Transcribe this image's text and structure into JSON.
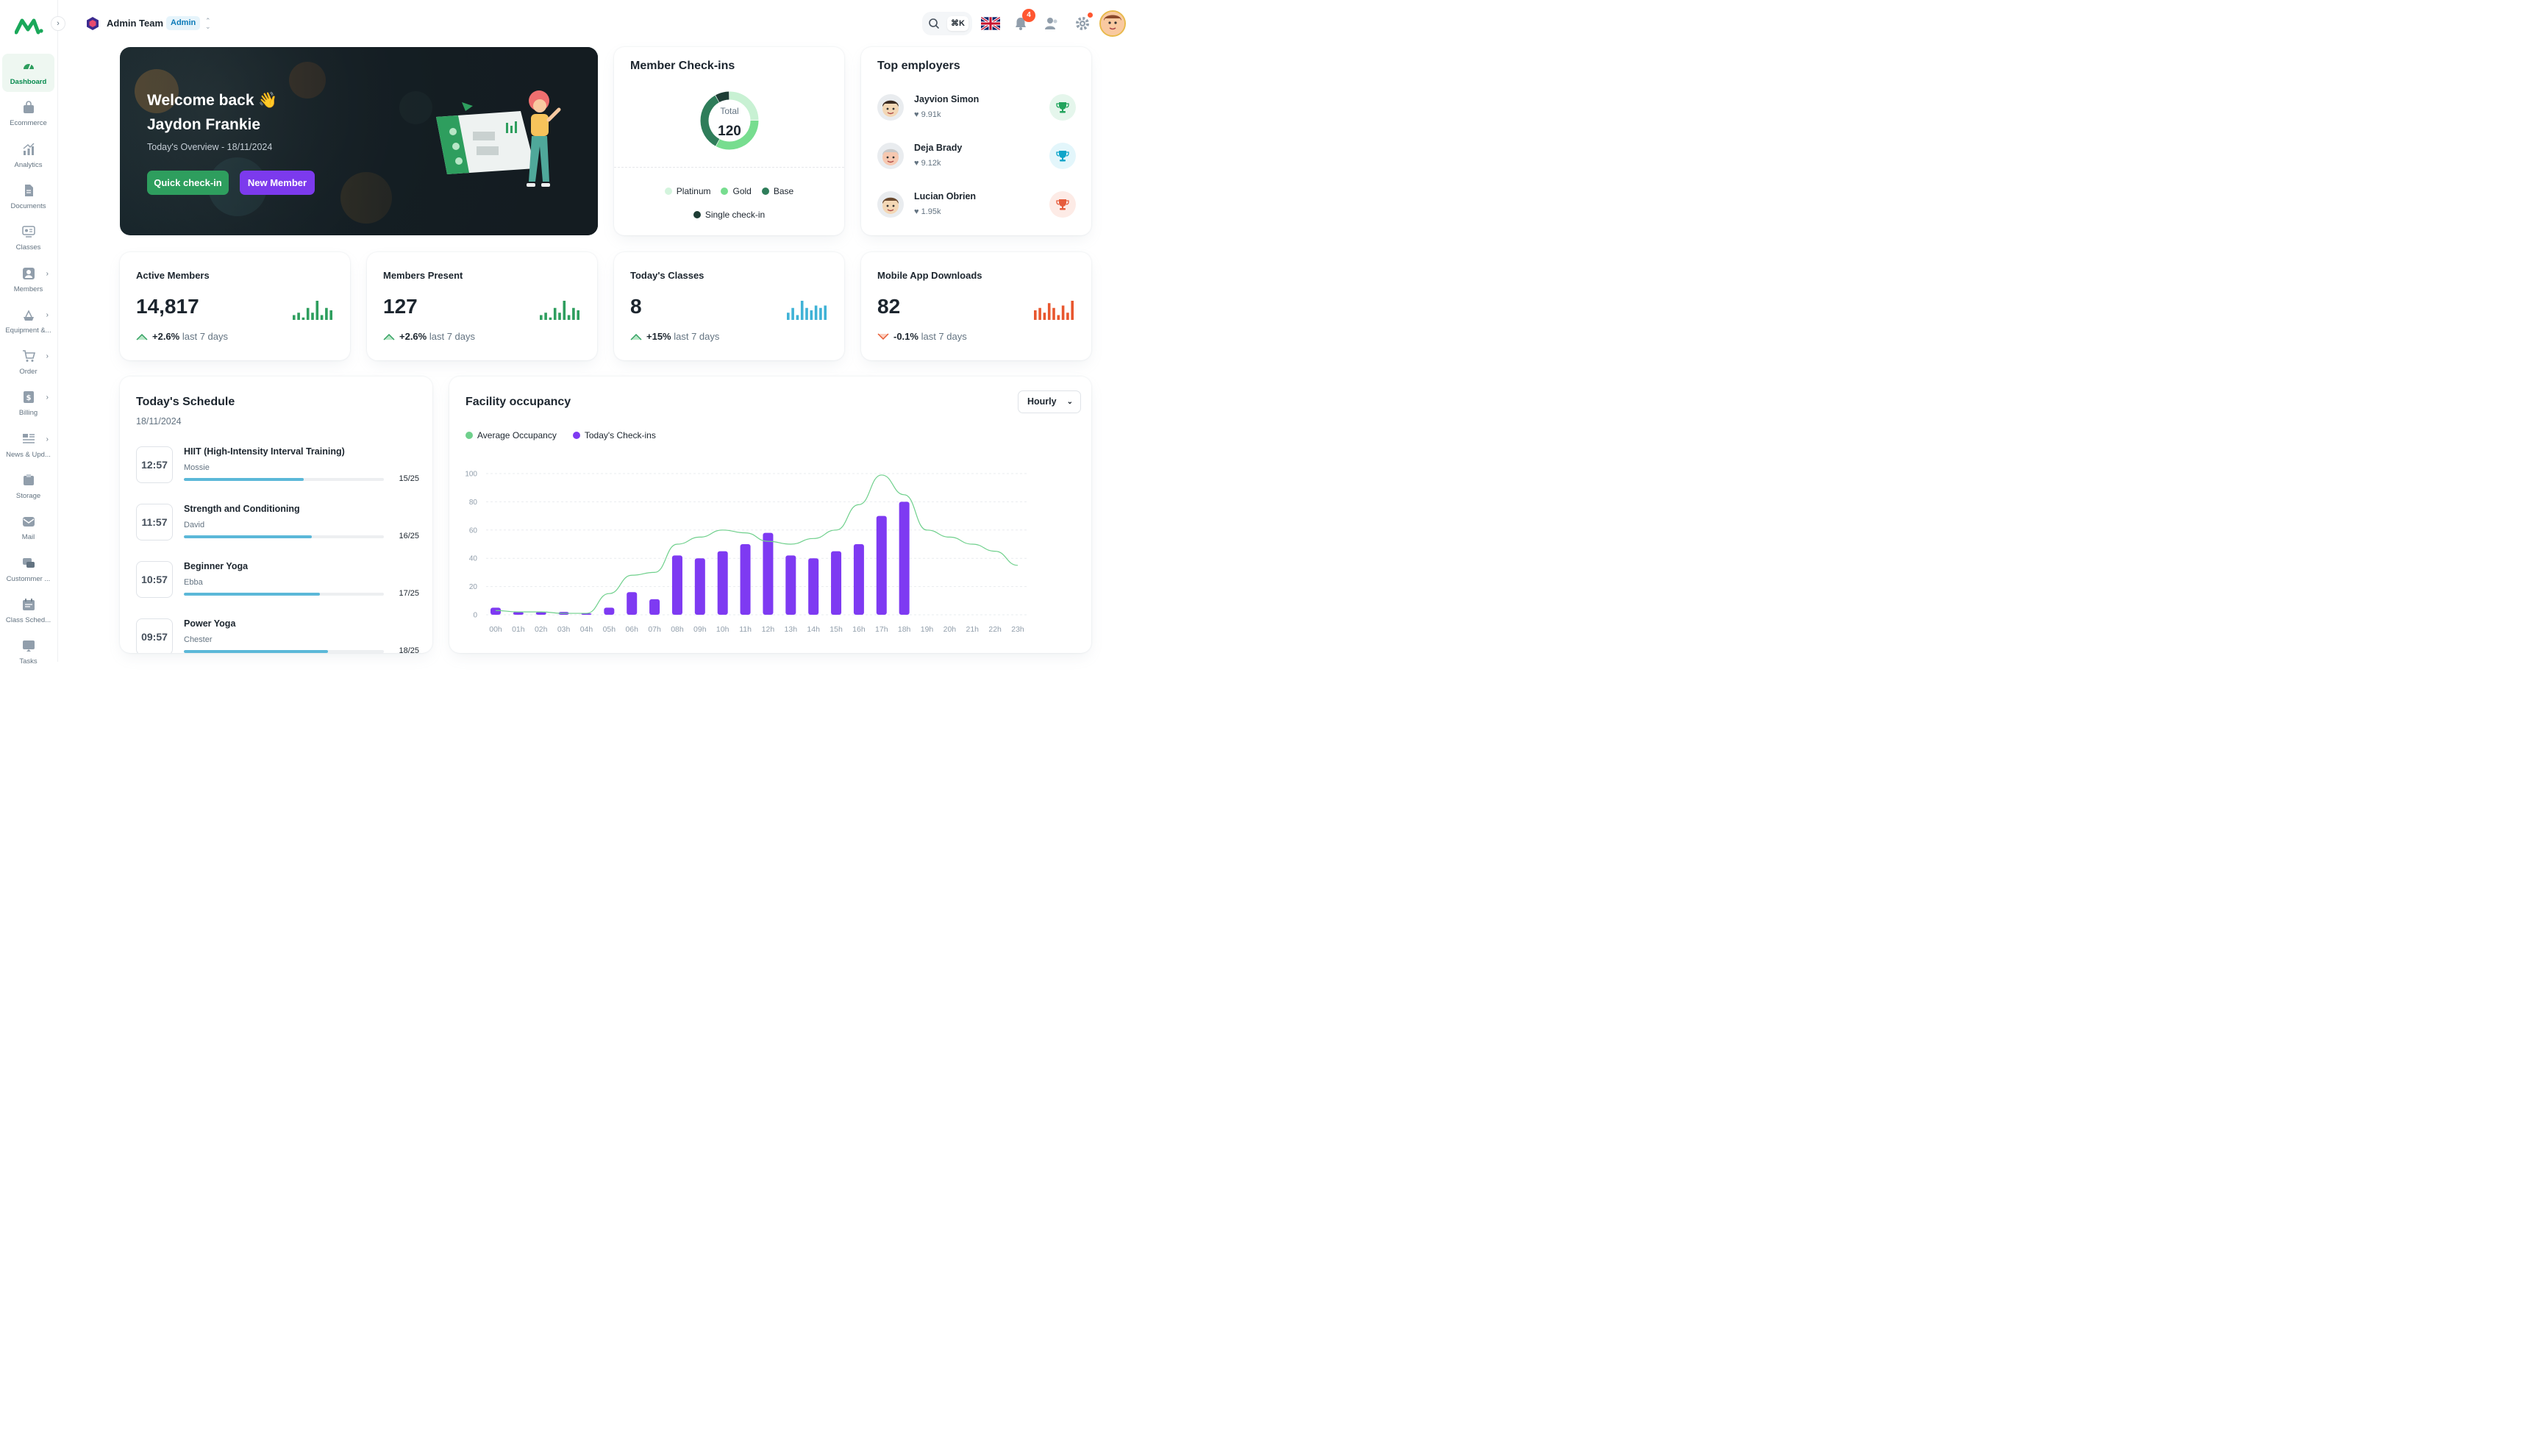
{
  "sidebar": {
    "items": [
      {
        "label": "Dashboard",
        "icon": "dashboard-icon",
        "active": true,
        "has_children": false
      },
      {
        "label": "Ecommerce",
        "icon": "bag-icon",
        "active": false,
        "has_children": false
      },
      {
        "label": "Analytics",
        "icon": "analytics-icon",
        "active": false,
        "has_children": false
      },
      {
        "label": "Documents",
        "icon": "document-icon",
        "active": false,
        "has_children": false
      },
      {
        "label": "Classes",
        "icon": "classes-icon",
        "active": false,
        "has_children": false
      },
      {
        "label": "Members",
        "icon": "user-icon",
        "active": false,
        "has_children": true
      },
      {
        "label": "Equipment &...",
        "icon": "equipment-icon",
        "active": false,
        "has_children": true
      },
      {
        "label": "Order",
        "icon": "cart-icon",
        "active": false,
        "has_children": true
      },
      {
        "label": "Billing",
        "icon": "billing-icon",
        "active": false,
        "has_children": true
      },
      {
        "label": "News & Upd...",
        "icon": "news-icon",
        "active": false,
        "has_children": true
      },
      {
        "label": "Storage",
        "icon": "storage-icon",
        "active": false,
        "has_children": false
      },
      {
        "label": "Mail",
        "icon": "mail-icon",
        "active": false,
        "has_children": false
      },
      {
        "label": "Custommer ...",
        "icon": "chat-icon",
        "active": false,
        "has_children": false
      },
      {
        "label": "Class Sched...",
        "icon": "calendar-icon",
        "active": false,
        "has_children": false
      },
      {
        "label": "Tasks",
        "icon": "tasks-icon",
        "active": false,
        "has_children": false
      }
    ]
  },
  "header": {
    "team_name": "Admin Team",
    "team_badge": "Admin",
    "search_shortcut": "⌘K",
    "notification_count": "4"
  },
  "hero": {
    "title_line1": "Welcome back 👋",
    "title_line2": "Jaydon Frankie",
    "subtitle": "Today's Overview - 18/11/2024",
    "primary_button": "Quick check-in",
    "secondary_button": "New Member"
  },
  "checkins": {
    "title": "Member Check-ins",
    "total_label": "Total",
    "total_value": "120",
    "legend": [
      {
        "label": "Platinum",
        "color": "#d3f4dd"
      },
      {
        "label": "Gold",
        "color": "#77dd8f"
      },
      {
        "label": "Base",
        "color": "#2f7d5a"
      },
      {
        "label": "Single check-in",
        "color": "#1e3d35"
      }
    ],
    "segments": [
      {
        "name": "Platinum",
        "fraction": 0.25,
        "color": "#c8f1d3"
      },
      {
        "name": "Gold",
        "fraction": 0.33,
        "color": "#77dd8f"
      },
      {
        "name": "Base",
        "fraction": 0.34,
        "color": "#2f7d5a"
      },
      {
        "name": "Single check-in",
        "fraction": 0.08,
        "color": "#1e3d35"
      }
    ]
  },
  "employers": {
    "title": "Top employers",
    "list": [
      {
        "name": "Jayvion Simon",
        "likes": "9.91k",
        "trophy_color": "#22a45d",
        "trophy_bg": "#e5f6ec"
      },
      {
        "name": "Deja Brady",
        "likes": "9.12k",
        "trophy_color": "#0ea5c9",
        "trophy_bg": "#e3f6fb"
      },
      {
        "name": "Lucian Obrien",
        "likes": "1.95k",
        "trophy_color": "#e65c3c",
        "trophy_bg": "#fdebe6"
      }
    ]
  },
  "stats": [
    {
      "title": "Active Members",
      "value": "14,817",
      "trend": "+2.6%",
      "trend_suffix": "last 7 days",
      "direction": "up",
      "color": "#2e9e5e",
      "spark": [
        2,
        3,
        1,
        5,
        3,
        8,
        2,
        5,
        4
      ]
    },
    {
      "title": "Members Present",
      "value": "127",
      "trend": "+2.6%",
      "trend_suffix": "last 7 days",
      "direction": "up",
      "color": "#2e9e5e",
      "spark": [
        2,
        3,
        1,
        5,
        3,
        8,
        2,
        5,
        4
      ]
    },
    {
      "title": "Today's Classes",
      "value": "8",
      "trend": "+15%",
      "trend_suffix": "last 7 days",
      "direction": "up",
      "color": "#3fb2d6",
      "spark": [
        3,
        5,
        2,
        8,
        5,
        4,
        6,
        5,
        6
      ]
    },
    {
      "title": "Mobile App Downloads",
      "value": "82",
      "trend": "-0.1%",
      "trend_suffix": "last 7 days",
      "direction": "down",
      "color": "#e8572f",
      "spark": [
        4,
        5,
        3,
        7,
        5,
        2,
        6,
        3,
        8
      ]
    }
  ],
  "schedule": {
    "title": "Today's Schedule",
    "date": "18/11/2024",
    "items": [
      {
        "time": "12:57",
        "name": "HIIT (High-Intensity Interval Training)",
        "coach": "Mossie",
        "capacity": "15/25",
        "fill": 0.6
      },
      {
        "time": "11:57",
        "name": "Strength and Conditioning",
        "coach": "David",
        "capacity": "16/25",
        "fill": 0.64
      },
      {
        "time": "10:57",
        "name": "Beginner Yoga",
        "coach": "Ebba",
        "capacity": "17/25",
        "fill": 0.68
      },
      {
        "time": "09:57",
        "name": "Power Yoga",
        "coach": "Chester",
        "capacity": "18/25",
        "fill": 0.72
      }
    ]
  },
  "occupancy": {
    "title": "Facility occupancy",
    "period": "Hourly"
  },
  "chart_data": {
    "type": "bar",
    "title": "",
    "categories": [
      "00h",
      "01h",
      "02h",
      "03h",
      "04h",
      "05h",
      "06h",
      "07h",
      "08h",
      "09h",
      "10h",
      "11h",
      "12h",
      "13h",
      "14h",
      "15h",
      "16h",
      "17h",
      "18h",
      "19h",
      "20h",
      "21h",
      "22h",
      "23h"
    ],
    "yticks": [
      "0",
      "20",
      "40",
      "60",
      "80",
      "100"
    ],
    "ylim": [
      0,
      100
    ],
    "legend_placement": "top-left",
    "series": [
      {
        "name": "Average Occupancy",
        "type": "line",
        "color": "#6fd08c",
        "values": [
          3,
          2,
          2,
          1,
          1,
          15,
          28,
          30,
          50,
          55,
          60,
          58,
          52,
          50,
          54,
          60,
          78,
          99,
          85,
          60,
          55,
          50,
          45,
          35
        ]
      },
      {
        "name": "Today's Check-ins",
        "type": "bar",
        "color": "#7e3af2",
        "values": [
          5,
          2,
          2,
          2,
          1,
          5,
          16,
          11,
          42,
          40,
          45,
          50,
          58,
          42,
          40,
          45,
          50,
          70,
          80,
          0,
          0,
          0,
          0,
          0
        ]
      }
    ]
  }
}
